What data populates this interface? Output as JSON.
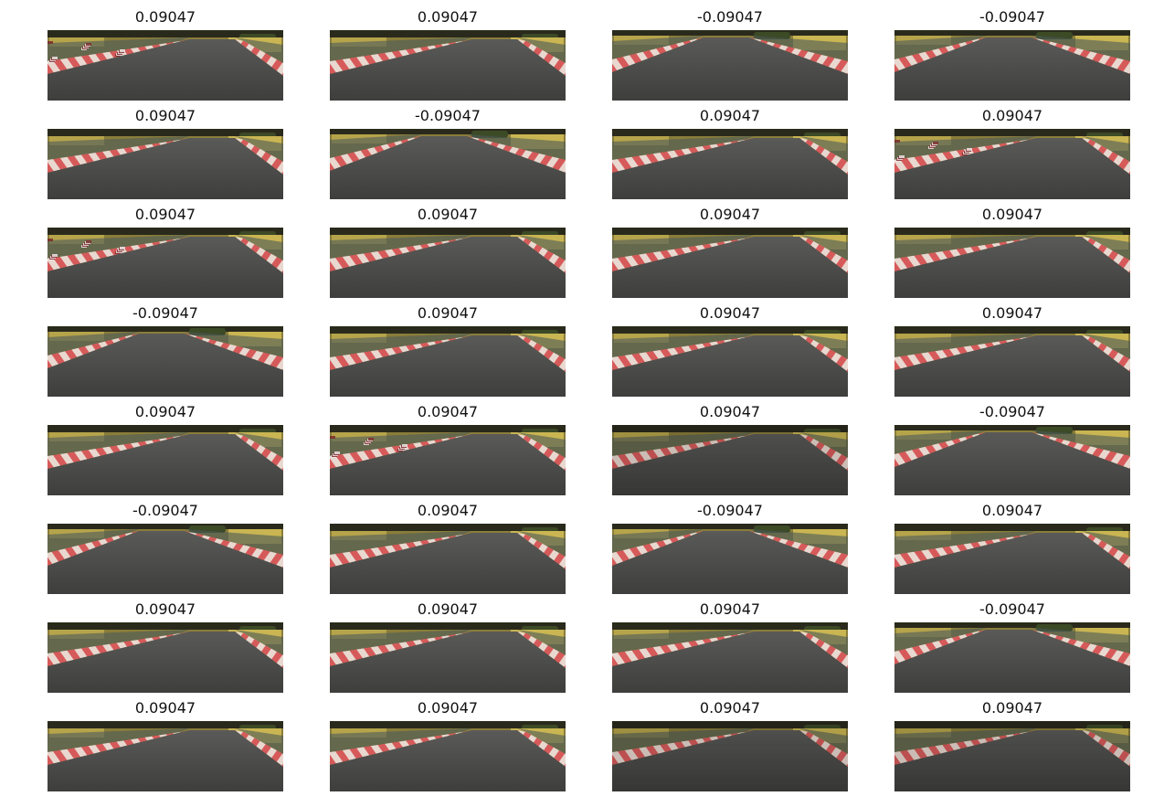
{
  "colors": {
    "sky": "#2a2a1c",
    "grass": "#8a7d3a",
    "bush": "#3c4a26",
    "sign": "#c9b552",
    "road_far": "#5a5a58",
    "road_near": "#3e3e3d",
    "curb_red": "#d65a5a",
    "curb_white": "#e8d8d0",
    "verge": "#4b5a5a"
  },
  "images": [
    {
      "label": "0.09047",
      "variant": "a"
    },
    {
      "label": "0.09047",
      "variant": "b"
    },
    {
      "label": "-0.09047",
      "variant": "c"
    },
    {
      "label": "-0.09047",
      "variant": "c"
    },
    {
      "label": "0.09047",
      "variant": "b"
    },
    {
      "label": "-0.09047",
      "variant": "c"
    },
    {
      "label": "0.09047",
      "variant": "b"
    },
    {
      "label": "0.09047",
      "variant": "a"
    },
    {
      "label": "0.09047",
      "variant": "a"
    },
    {
      "label": "0.09047",
      "variant": "b"
    },
    {
      "label": "0.09047",
      "variant": "b"
    },
    {
      "label": "0.09047",
      "variant": "b"
    },
    {
      "label": "-0.09047",
      "variant": "c"
    },
    {
      "label": "0.09047",
      "variant": "b"
    },
    {
      "label": "0.09047",
      "variant": "b"
    },
    {
      "label": "0.09047",
      "variant": "b"
    },
    {
      "label": "0.09047",
      "variant": "b"
    },
    {
      "label": "0.09047",
      "variant": "a"
    },
    {
      "label": "0.09047",
      "variant": "d"
    },
    {
      "label": "-0.09047",
      "variant": "c"
    },
    {
      "label": "-0.09047",
      "variant": "c"
    },
    {
      "label": "0.09047",
      "variant": "b"
    },
    {
      "label": "-0.09047",
      "variant": "c"
    },
    {
      "label": "0.09047",
      "variant": "b"
    },
    {
      "label": "0.09047",
      "variant": "b"
    },
    {
      "label": "0.09047",
      "variant": "b"
    },
    {
      "label": "0.09047",
      "variant": "b"
    },
    {
      "label": "-0.09047",
      "variant": "c"
    },
    {
      "label": "0.09047",
      "variant": "b"
    },
    {
      "label": "0.09047",
      "variant": "b"
    },
    {
      "label": "0.09047",
      "variant": "d"
    },
    {
      "label": "0.09047",
      "variant": "d"
    }
  ]
}
